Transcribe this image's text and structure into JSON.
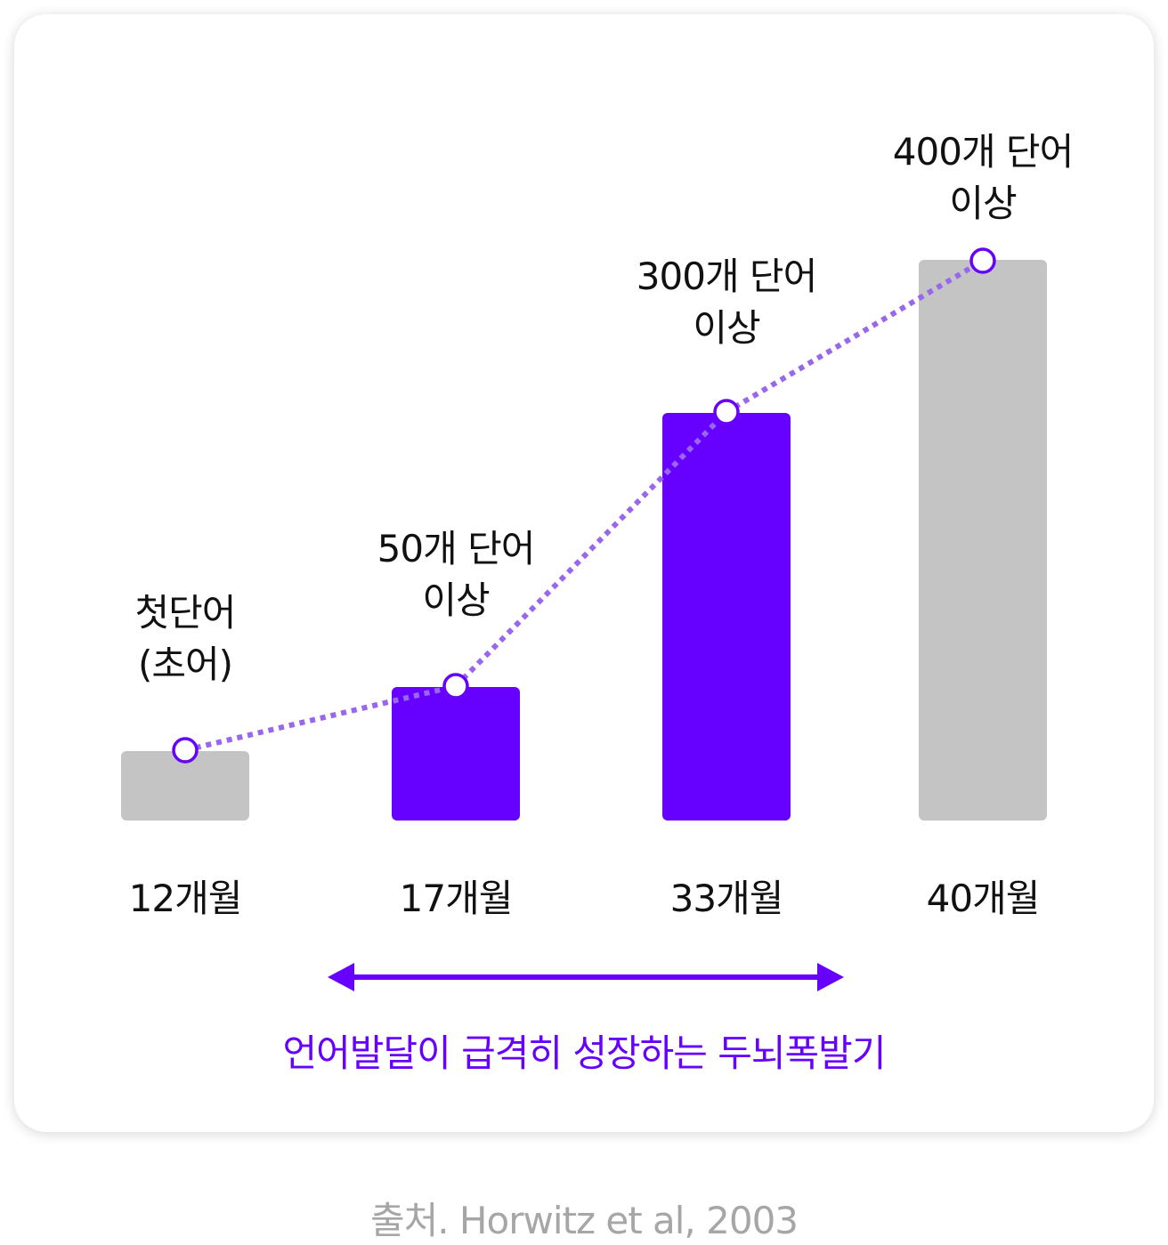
{
  "chart_data": {
    "type": "bar",
    "categories": [
      "12개월",
      "17개월",
      "33개월",
      "40개월"
    ],
    "values": [
      50,
      50,
      300,
      400
    ],
    "value_labels": [
      [
        "첫단어",
        "(초어)"
      ],
      [
        "50개 단어",
        "이상"
      ],
      [
        "300개 단어",
        "이상"
      ],
      [
        "400개 단어",
        "이상"
      ]
    ],
    "bar_colors": [
      "#c4c4c4",
      "#6600ff",
      "#6600ff",
      "#c4c4c4"
    ],
    "line_color": "#9966ee",
    "marker_stroke": "#6600ff",
    "ylim": [
      0,
      400
    ]
  },
  "period": {
    "label": "언어발달이 급격히 성장하는 두뇌폭발기",
    "color": "#6600ff"
  },
  "source": "출처. Horwitz et al, 2003"
}
